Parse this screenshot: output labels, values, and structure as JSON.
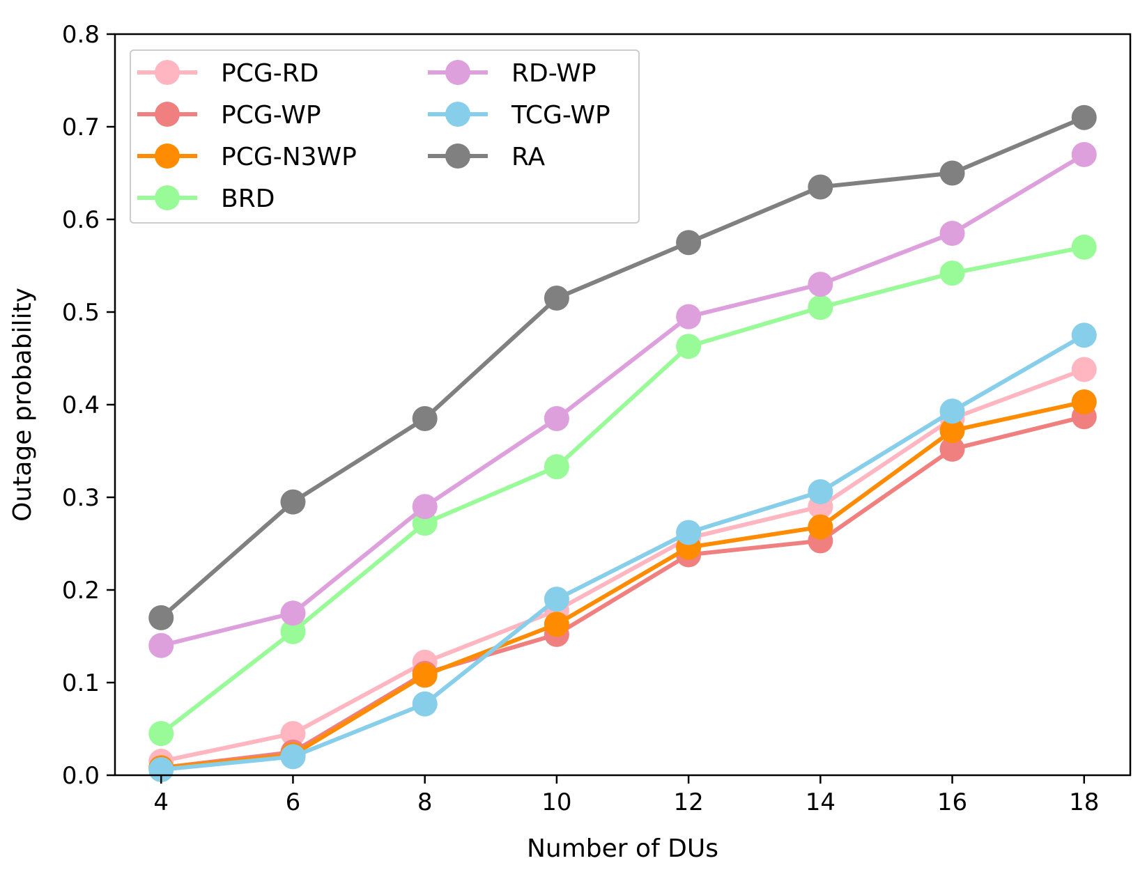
{
  "chart_data": {
    "type": "line",
    "title": "",
    "xlabel": "Number of DUs",
    "ylabel": "Outage probability",
    "x": [
      4,
      6,
      8,
      10,
      12,
      14,
      16,
      18
    ],
    "xlim": [
      3.3,
      18.7
    ],
    "ylim": [
      0,
      0.8
    ],
    "xticks": [
      4,
      6,
      8,
      10,
      12,
      14,
      16,
      18
    ],
    "xtick_labels": [
      "4",
      "6",
      "8",
      "10",
      "12",
      "14",
      "16",
      "18"
    ],
    "yticks": [
      0,
      0.1,
      0.2,
      0.3,
      0.4,
      0.5,
      0.6,
      0.7,
      0.8
    ],
    "ytick_labels": [
      "0.0",
      "0.1",
      "0.2",
      "0.3",
      "0.4",
      "0.5",
      "0.6",
      "0.7",
      "0.8"
    ],
    "grid": false,
    "legend_position": "top-left",
    "series": [
      {
        "name": "PCG-RD",
        "color": "#ffb6c1",
        "values": [
          0.015,
          0.045,
          0.122,
          0.178,
          0.256,
          0.29,
          0.385,
          0.438
        ]
      },
      {
        "name": "PCG-WP",
        "color": "#f08080",
        "values": [
          0.008,
          0.025,
          0.11,
          0.152,
          0.238,
          0.253,
          0.352,
          0.387
        ]
      },
      {
        "name": "PCG-N3WP",
        "color": "#ff8c00",
        "values": [
          0.008,
          0.022,
          0.108,
          0.163,
          0.246,
          0.268,
          0.372,
          0.403
        ]
      },
      {
        "name": "BRD",
        "color": "#98fb98",
        "values": [
          0.045,
          0.155,
          0.272,
          0.333,
          0.463,
          0.505,
          0.542,
          0.57
        ]
      },
      {
        "name": "RD-WP",
        "color": "#dda0dd",
        "values": [
          0.14,
          0.175,
          0.29,
          0.385,
          0.495,
          0.53,
          0.585,
          0.67
        ]
      },
      {
        "name": "TCG-WP",
        "color": "#87ceeb",
        "values": [
          0.006,
          0.02,
          0.077,
          0.19,
          0.262,
          0.306,
          0.393,
          0.475
        ]
      },
      {
        "name": "RA",
        "color": "#808080",
        "values": [
          0.17,
          0.295,
          0.385,
          0.515,
          0.575,
          0.635,
          0.65,
          0.71
        ]
      }
    ]
  }
}
